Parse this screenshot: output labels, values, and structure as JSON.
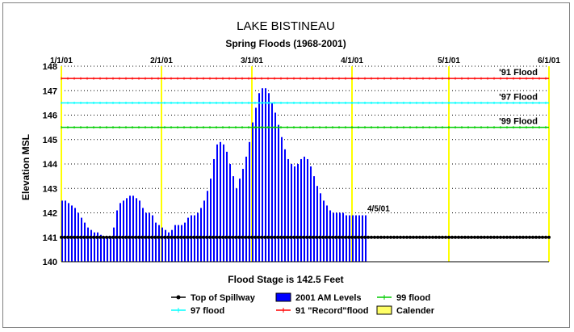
{
  "chart_data": {
    "type": "bar",
    "title": "LAKE BISTINEAU",
    "subtitle": "Spring Floods (1968-2001)",
    "ylabel": "Elevation MSL",
    "xlabel": "Flood Stage is 142.5 Feet",
    "ylim": [
      140,
      148
    ],
    "y_ticks": [
      "140",
      "141",
      "142",
      "143",
      "144",
      "145",
      "146",
      "147",
      "148"
    ],
    "calendar_dates": [
      "1/1/01",
      "2/1/01",
      "3/1/01",
      "4/1/01",
      "5/1/01",
      "6/1/01"
    ],
    "calendar_days": [
      0,
      31,
      59,
      90,
      120,
      151
    ],
    "grid": true,
    "legend_position": "bottom",
    "last_reading_label": "4/5/01",
    "spillway": {
      "name": "Top of Spillway",
      "value": 141.0,
      "color": "#000000"
    },
    "flood_lines": [
      {
        "name": "91 \"Record\"flood",
        "label": "'91 Flood",
        "value": 147.5,
        "color": "#ff0000"
      },
      {
        "name": "97 flood",
        "label": "'97 Flood",
        "value": 146.5,
        "color": "#00ffff"
      },
      {
        "name": "99 flood",
        "label": "'99 Flood",
        "value": 145.5,
        "color": "#00cc00"
      }
    ],
    "bars": {
      "name": "2001 AM Levels",
      "color": "#0000ff",
      "values": [
        142.5,
        142.5,
        142.4,
        142.3,
        142.2,
        142.0,
        141.8,
        141.6,
        141.4,
        141.3,
        141.2,
        141.2,
        141.1,
        141.0,
        141.0,
        141.0,
        141.4,
        142.1,
        142.4,
        142.5,
        142.6,
        142.7,
        142.7,
        142.6,
        142.5,
        142.2,
        142.0,
        142.0,
        141.9,
        141.6,
        141.5,
        141.4,
        141.3,
        141.2,
        141.3,
        141.5,
        141.5,
        141.5,
        141.6,
        141.8,
        141.9,
        141.9,
        142.0,
        142.2,
        142.5,
        142.9,
        143.4,
        144.2,
        144.8,
        144.9,
        144.8,
        144.5,
        144.0,
        143.5,
        143.0,
        143.4,
        143.8,
        144.3,
        144.9,
        145.7,
        146.3,
        146.9,
        147.1,
        147.1,
        146.9,
        146.5,
        146.1,
        145.6,
        145.1,
        144.6,
        144.2,
        144.0,
        143.9,
        144.0,
        144.2,
        144.3,
        144.2,
        143.9,
        143.5,
        143.1,
        142.8,
        142.5,
        142.3,
        142.1,
        142.0,
        142.0,
        142.0,
        142.0,
        141.9,
        141.9,
        141.9,
        141.9,
        141.9,
        141.9,
        141.9
      ]
    },
    "series": [
      {
        "name": "Top of Spillway",
        "values": [
          141.0
        ]
      },
      {
        "name": "2001 AM Levels",
        "values": []
      },
      {
        "name": "99 flood",
        "values": [
          145.5
        ]
      },
      {
        "name": "97 flood",
        "values": [
          146.5
        ]
      },
      {
        "name": "91 \"Record\"flood",
        "values": [
          147.5
        ]
      },
      {
        "name": "Calender",
        "values": []
      }
    ],
    "legend": [
      {
        "name": "Top of Spillway",
        "kind": "line-dot",
        "color": "#000000"
      },
      {
        "name": "2001 AM Levels",
        "kind": "box",
        "color": "#0000ff"
      },
      {
        "name": "99 flood",
        "kind": "line-tick",
        "color": "#00cc00"
      },
      {
        "name": "97 flood",
        "kind": "line-tick",
        "color": "#00ffff"
      },
      {
        "name": "91 \"Record\"flood",
        "kind": "line-tick",
        "color": "#ff0000"
      },
      {
        "name": "Calender",
        "kind": "box",
        "color": "#ffff66"
      }
    ],
    "calendar_color": "#ffff00"
  }
}
